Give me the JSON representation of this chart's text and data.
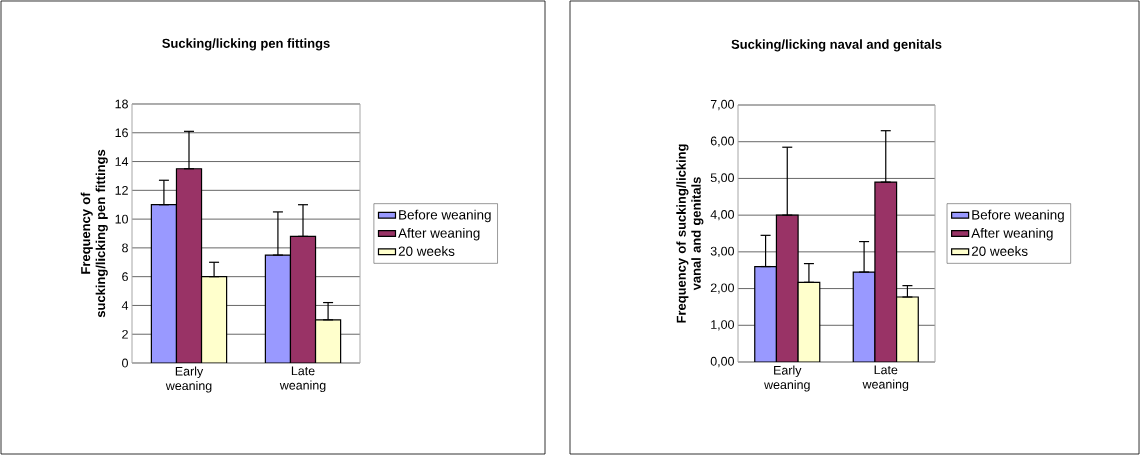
{
  "chart_data": [
    {
      "type": "bar",
      "title": "Sucking/licking pen fittings",
      "ylabel": "Frequency of sucking/licking pen fittings",
      "categories": [
        "Early weaning",
        "Late weaning"
      ],
      "series": [
        {
          "name": "Before weaning",
          "color": "#9999ff",
          "values": [
            11,
            7.5
          ],
          "errors": [
            [
              11,
              12.7
            ],
            [
              7.5,
              10.5
            ]
          ]
        },
        {
          "name": "After weaning",
          "color": "#993366",
          "values": [
            13.5,
            8.8
          ],
          "errors": [
            [
              13.5,
              16.1
            ],
            [
              8.8,
              11
            ]
          ]
        },
        {
          "name": "20 weeks",
          "color": "#ffffcc",
          "values": [
            6,
            3
          ],
          "errors": [
            [
              6,
              7
            ],
            [
              3,
              4.2
            ]
          ]
        }
      ],
      "ylim": [
        0,
        18
      ],
      "yticks": [
        0,
        2,
        4,
        6,
        8,
        10,
        12,
        14,
        16,
        18
      ],
      "grid": "y",
      "legend": "right"
    },
    {
      "type": "bar",
      "title": "Sucking/licking naval and genitals",
      "ylabel": "Frequency of sucking/licking vanal and genitals",
      "categories": [
        "Early weaning",
        "Late weaning"
      ],
      "series": [
        {
          "name": "Before weaning",
          "color": "#9999ff",
          "values": [
            2.6,
            2.45
          ],
          "errors": [
            [
              2.6,
              3.45
            ],
            [
              2.45,
              3.28
            ]
          ]
        },
        {
          "name": "After weaning",
          "color": "#993366",
          "values": [
            4.0,
            4.9
          ],
          "errors": [
            [
              4.0,
              5.85
            ],
            [
              4.9,
              6.3
            ]
          ]
        },
        {
          "name": "20 weeks",
          "color": "#ffffcc",
          "values": [
            2.17,
            1.77
          ],
          "errors": [
            [
              2.17,
              2.68
            ],
            [
              1.77,
              2.08
            ]
          ]
        }
      ],
      "ylim": [
        0,
        7
      ],
      "yticks": [
        {
          "value": 0,
          "label": "0,00"
        },
        {
          "value": 1,
          "label": "1,00"
        },
        {
          "value": 2,
          "label": "2,00"
        },
        {
          "value": 3,
          "label": "3,00"
        },
        {
          "value": 4,
          "label": "4,00"
        },
        {
          "value": 5,
          "label": "5,00"
        },
        {
          "value": 6,
          "label": "6,00"
        },
        {
          "value": 7,
          "label": "7,00"
        }
      ],
      "grid": "y",
      "legend": "right"
    }
  ]
}
